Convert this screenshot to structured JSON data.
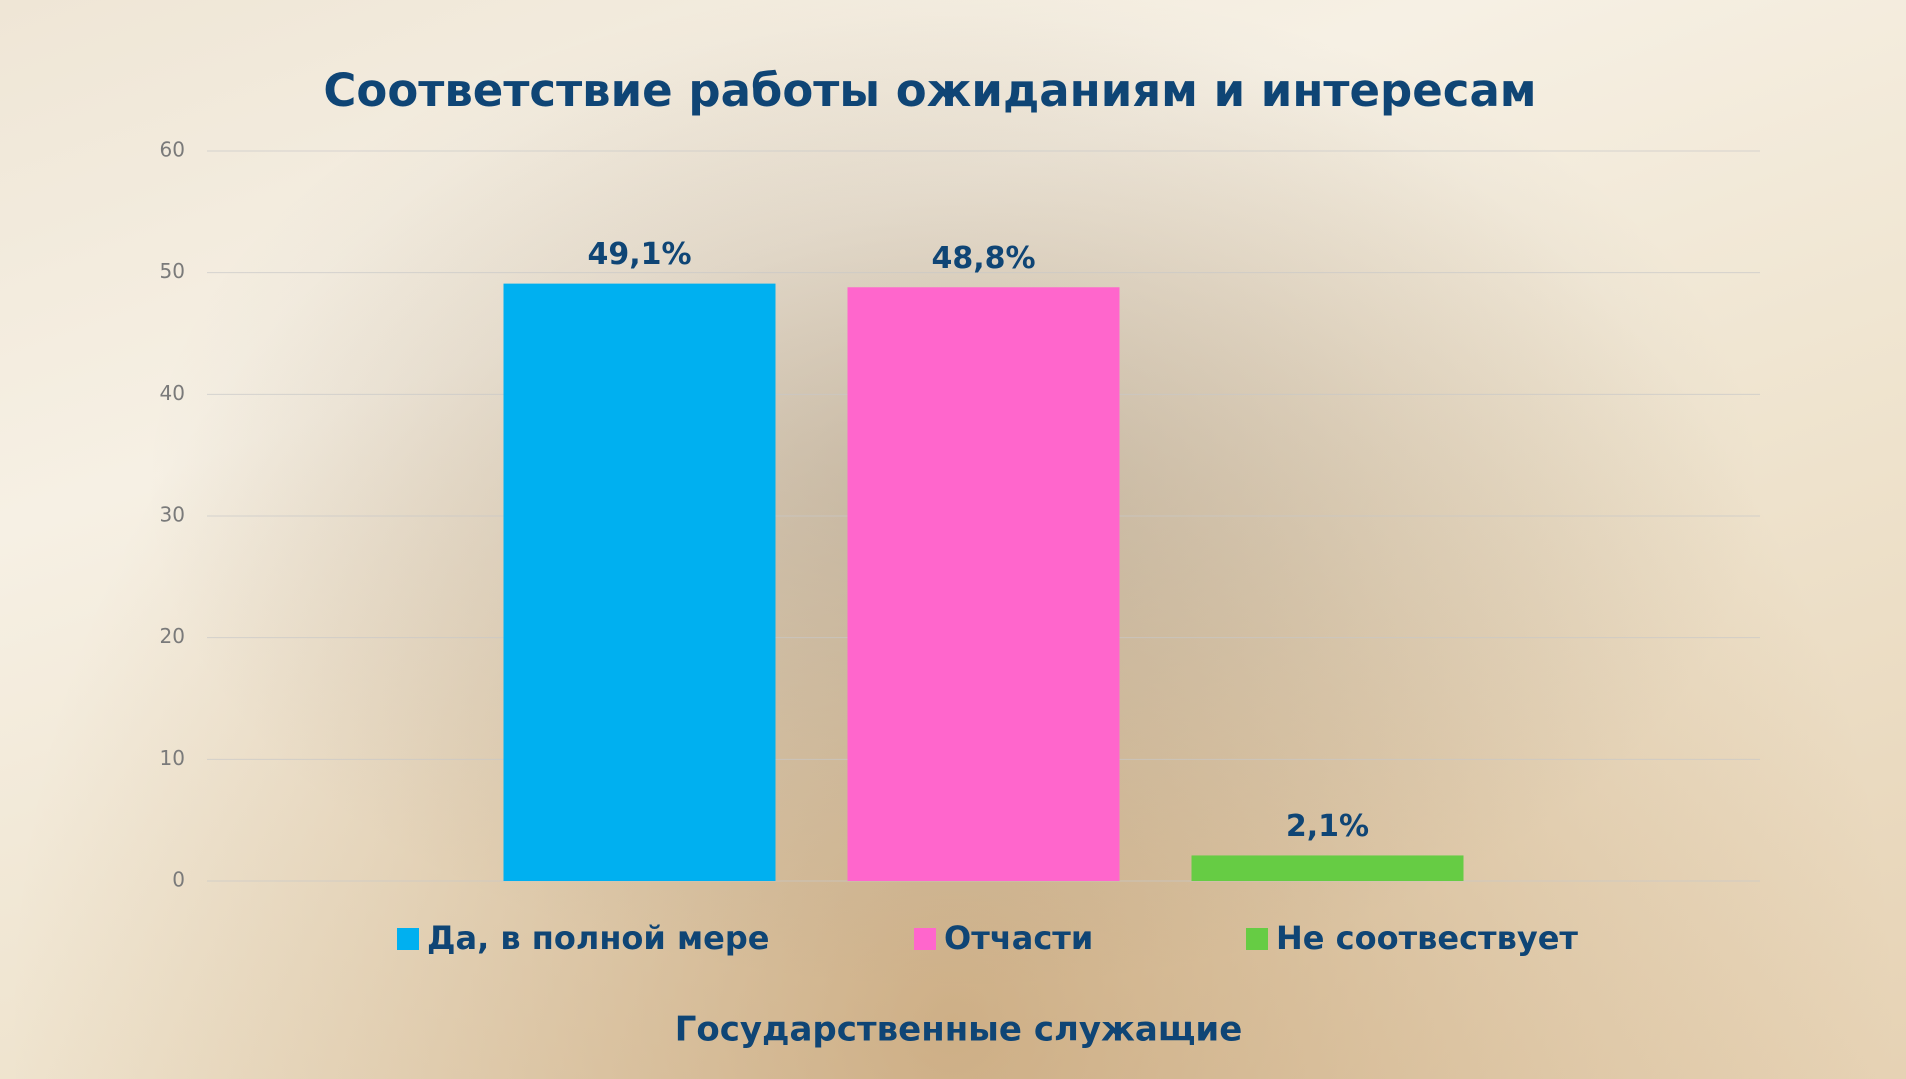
{
  "chart_data": {
    "type": "bar",
    "title": "Соответствие работы ожиданиям и интересам",
    "categories": [
      "Государственные служащие"
    ],
    "series": [
      {
        "name": "Да, в полной мере",
        "color": "#00b0f0",
        "values": [
          49.1
        ],
        "value_labels": [
          "49,1%"
        ]
      },
      {
        "name": "Отчасти",
        "color": "#ff66cc",
        "values": [
          48.8
        ],
        "value_labels": [
          "48,8%"
        ]
      },
      {
        "name": "Не соотвествует",
        "color": "#66cc44",
        "values": [
          2.1
        ],
        "value_labels": [
          "2,1%"
        ]
      }
    ],
    "ylim": [
      0,
      60
    ],
    "yticks": [
      0,
      10,
      20,
      30,
      40,
      50,
      60
    ],
    "grid": true,
    "legend": "bottom"
  }
}
